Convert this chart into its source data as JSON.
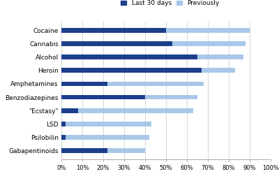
{
  "categories": [
    "Cocaine",
    "Cannabis",
    "Alcohol",
    "Heroin",
    "Amphetamines",
    "Benzodiazepines",
    "\"Ecstasy\"",
    "LSD",
    "Psilobilin",
    "Gabapentinoids"
  ],
  "last_30_days": [
    50,
    53,
    65,
    67,
    22,
    40,
    8,
    2,
    2,
    22
  ],
  "previously": [
    90,
    88,
    87,
    83,
    68,
    65,
    63,
    43,
    42,
    40
  ],
  "color_last30": "#1B3F8B",
  "color_prev": "#A8C8E8",
  "xlim": [
    0,
    100
  ],
  "xticks": [
    0,
    10,
    20,
    30,
    40,
    50,
    60,
    70,
    80,
    90,
    100
  ],
  "xticklabels": [
    "0%",
    "10%",
    "20%",
    "30%",
    "40%",
    "50%",
    "60%",
    "70%",
    "80%",
    "90%",
    "100%"
  ],
  "legend_labels": [
    "Last 30 days",
    "Previously"
  ],
  "bar_height": 0.35,
  "background_color": "#ffffff",
  "grid_color": "#d0d0d0"
}
